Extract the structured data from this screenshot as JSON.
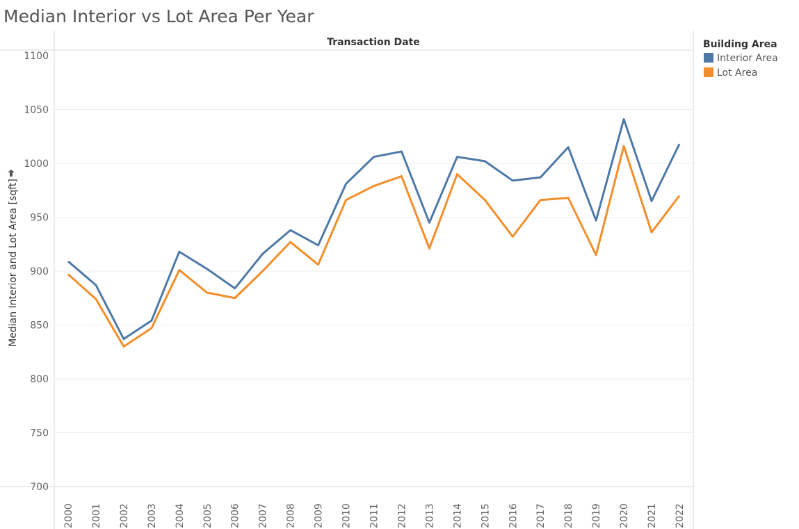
{
  "page_title": "Median Interior vs Lot Area Per Year",
  "chart_data": {
    "type": "line",
    "title": "Median Interior vs Lot Area Per Year",
    "column_header": "Transaction Date",
    "xlabel": "",
    "ylabel": "Median Interior and Lot Area [sqft]",
    "ylim": [
      700,
      1100
    ],
    "yticks": [
      700,
      750,
      800,
      850,
      900,
      950,
      1000,
      1050,
      1100
    ],
    "grid": true,
    "legend_position": "right",
    "legend_title": "Building Area",
    "categories": [
      "2000",
      "2001",
      "2002",
      "2003",
      "2004",
      "2005",
      "2006",
      "2007",
      "2008",
      "2009",
      "2010",
      "2011",
      "2012",
      "2013",
      "2014",
      "2015",
      "2016",
      "2017",
      "2018",
      "2019",
      "2020",
      "2021",
      "2022"
    ],
    "series": [
      {
        "name": "Interior Area",
        "color": "#4e79a7",
        "values": [
          909,
          887,
          837,
          854,
          918,
          902,
          884,
          916,
          938,
          924,
          981,
          1006,
          1011,
          945,
          1006,
          1002,
          984,
          987,
          1015,
          947,
          1041,
          965,
          1018
        ]
      },
      {
        "name": "Lot Area",
        "color": "#f28e2b",
        "values": [
          897,
          874,
          830,
          847,
          901,
          880,
          875,
          900,
          927,
          906,
          966,
          979,
          988,
          921,
          990,
          966,
          932,
          966,
          968,
          915,
          1016,
          936,
          970
        ]
      }
    ]
  },
  "icons": {
    "ylabel_pin": "pin-icon"
  }
}
